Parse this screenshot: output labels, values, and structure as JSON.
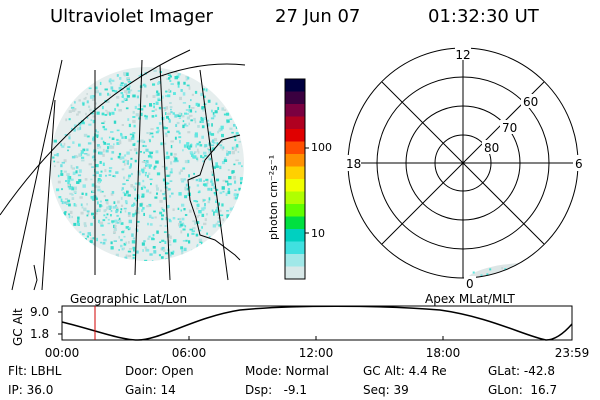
{
  "header": {
    "title": "Ultraviolet Imager",
    "date": "27 Jun 07",
    "time": "01:32:30 UT"
  },
  "colorbar": {
    "label": "photon cm⁻²s⁻¹",
    "ticks": [
      "100",
      "10"
    ],
    "colors": [
      "#000040",
      "#3a0040",
      "#7a0040",
      "#b00020",
      "#e00000",
      "#ff5000",
      "#ff9000",
      "#ffd000",
      "#f0ff00",
      "#b0ff00",
      "#60ff00",
      "#00e040",
      "#00d0c0",
      "#40e0e0",
      "#a0e8e8",
      "#d8e8e8"
    ]
  },
  "polar": {
    "mlt_labels": [
      "12",
      "18",
      "6",
      "0"
    ],
    "lat_labels": [
      "60",
      "70",
      "80"
    ]
  },
  "map_labels": {
    "geographic": "Geographic Lat/Lon",
    "apex": "Apex MLat/MLT"
  },
  "altitude_plot": {
    "ylabel": "GC Alt",
    "y_ticks": [
      "9.0",
      "1.8"
    ],
    "x_ticks": [
      "00:00",
      "06:00",
      "12:00",
      "18:00",
      "23:59"
    ],
    "marker_time": "01:32"
  },
  "info": {
    "row1": {
      "flt": "Flt: LBHL",
      "door": "Door: Open",
      "mode": "Mode: Normal",
      "gcalt": "GC Alt: 4.4 Re",
      "glat": "GLat: -42.8"
    },
    "row2": {
      "ip": "IP: 36.0",
      "gain": "Gain: 14",
      "dsp": "Dsp:   -9.1",
      "seq": "Seq: 39",
      "glon": "GLon:  16.7"
    }
  }
}
